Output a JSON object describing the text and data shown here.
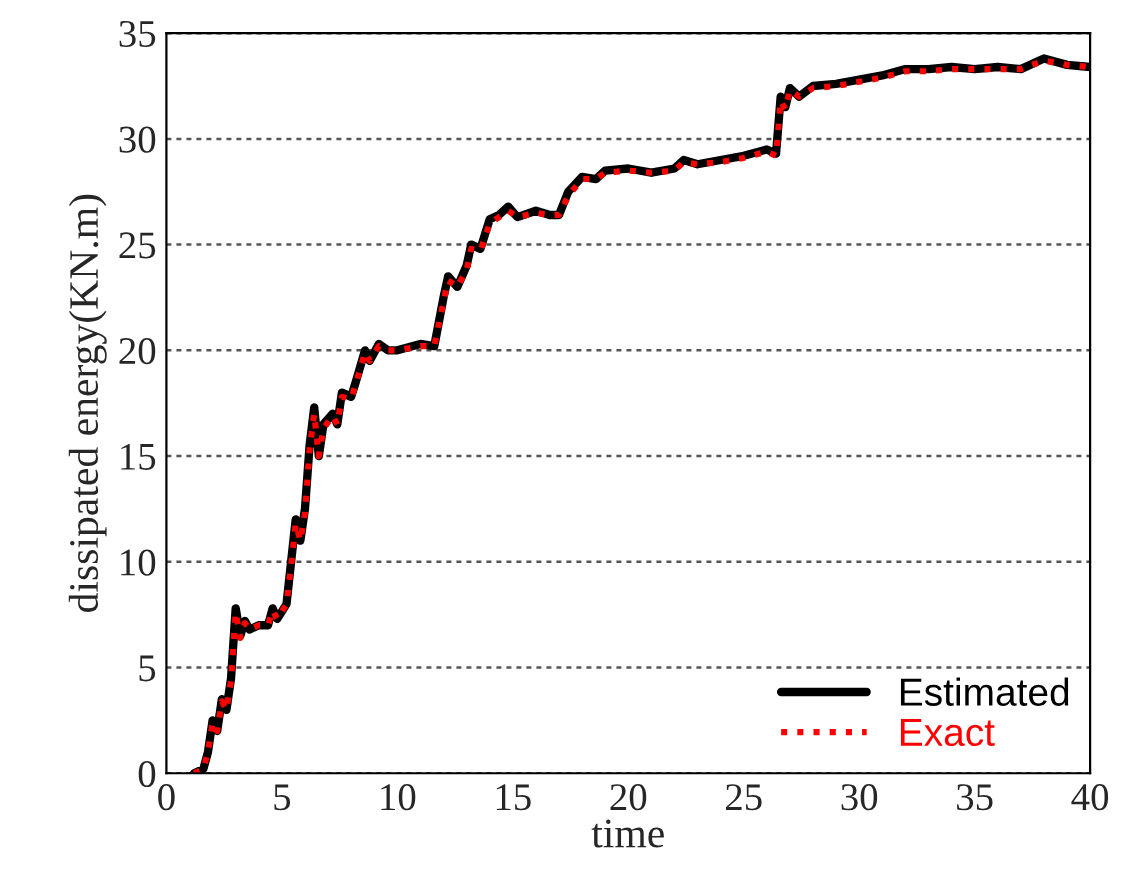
{
  "chart_data": {
    "type": "line",
    "xlabel": "time",
    "ylabel": "dissipated energy(KN.m)",
    "xlim": [
      0,
      40
    ],
    "ylim": [
      0,
      35
    ],
    "xticks": [
      0,
      5,
      10,
      15,
      20,
      25,
      30,
      35,
      40
    ],
    "yticks": [
      0,
      5,
      10,
      15,
      20,
      25,
      30,
      35
    ],
    "grid": "y",
    "legend": "bottom right",
    "x": [
      1.2,
      1.6,
      1.8,
      2.0,
      2.2,
      2.4,
      2.6,
      2.8,
      3.0,
      3.2,
      3.4,
      3.6,
      4.0,
      4.4,
      4.6,
      4.8,
      5.2,
      5.4,
      5.6,
      5.8,
      6.0,
      6.2,
      6.4,
      6.6,
      6.8,
      7.2,
      7.4,
      7.6,
      8.0,
      8.2,
      8.6,
      8.8,
      9.2,
      9.6,
      10,
      11,
      11.6,
      12,
      12.2,
      12.6,
      13,
      13.2,
      13.6,
      14,
      14.4,
      14.8,
      15.2,
      16,
      16.6,
      17,
      17.4,
      18,
      18.6,
      19,
      20,
      21,
      22,
      22.4,
      23,
      24,
      25,
      26,
      26.4,
      26.6,
      26.8,
      27,
      27.4,
      28,
      29,
      30,
      31,
      32,
      33,
      34,
      35,
      36,
      37,
      38,
      39,
      40
    ],
    "series": [
      {
        "name": "Estimated",
        "color": "#000000",
        "line_style": "solid",
        "values": [
          0,
          0.2,
          1,
          2.5,
          2,
          3.5,
          3,
          4.5,
          7.8,
          6.5,
          7.2,
          6.8,
          7.0,
          7.0,
          7.8,
          7.3,
          8.0,
          10,
          12,
          11,
          12.5,
          15.5,
          17.3,
          15,
          16.5,
          17,
          16.5,
          18,
          17.8,
          18.5,
          20,
          19.5,
          20.3,
          20,
          20,
          20.3,
          20.2,
          22.5,
          23.5,
          23,
          24,
          25,
          24.8,
          26.2,
          26.4,
          26.8,
          26.3,
          26.6,
          26.4,
          26.4,
          27.5,
          28.2,
          28.1,
          28.5,
          28.6,
          28.4,
          28.6,
          29,
          28.8,
          29,
          29.2,
          29.5,
          29.3,
          32,
          31.5,
          32.4,
          32,
          32.5,
          32.6,
          32.8,
          33,
          33.3,
          33.3,
          33.4,
          33.3,
          33.4,
          33.3,
          33.8,
          33.5,
          33.4
        ]
      },
      {
        "name": "Exact",
        "color": "#ff0000",
        "line_style": "dotted",
        "values": [
          0,
          0.2,
          1,
          2.4,
          2,
          3.4,
          3,
          4.4,
          7.6,
          6.4,
          7.1,
          6.8,
          7.0,
          7.0,
          7.7,
          7.3,
          8.0,
          9.8,
          11.8,
          11,
          12.3,
          15.3,
          17.0,
          15,
          16.3,
          16.9,
          16.5,
          17.8,
          17.7,
          18.4,
          19.9,
          19.5,
          20.2,
          20,
          20,
          20.2,
          20.2,
          22.3,
          23.3,
          23,
          23.8,
          24.8,
          24.7,
          26.0,
          26.3,
          26.6,
          26.3,
          26.5,
          26.4,
          26.4,
          27.3,
          28.1,
          28.1,
          28.4,
          28.5,
          28.4,
          28.5,
          28.9,
          28.8,
          28.9,
          29.1,
          29.4,
          29.2,
          31.8,
          31.4,
          32.3,
          32,
          32.4,
          32.5,
          32.7,
          32.9,
          33.2,
          33.2,
          33.3,
          33.3,
          33.3,
          33.3,
          33.7,
          33.5,
          33.4
        ]
      }
    ]
  }
}
